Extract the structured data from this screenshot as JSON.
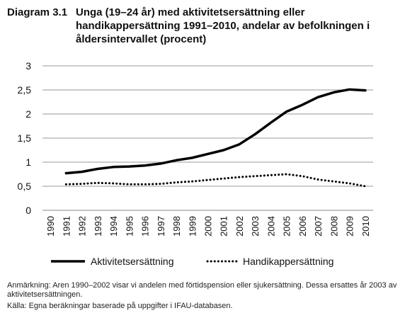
{
  "header": {
    "label": "Diagram 3.1",
    "title": "Unga (19–24 år) med aktivitetsersättning eller handikappersättning 1991–2010, andelar av befolkningen i åldersintervallet (procent)"
  },
  "notes": {
    "remark": "Anmärkning: Aren 1990–2002 visar vi andelen med förtidspension eller sjukersättning. Dessa ersattes år 2003 av aktivitetsersättningen.",
    "source": "Källa: Egna beräkningar baserade på uppgifter i IFAU-databasen."
  },
  "chart_data": {
    "type": "line",
    "x": [
      "1990",
      "1991",
      "1992",
      "1993",
      "1994",
      "1995",
      "1996",
      "1997",
      "1998",
      "1999",
      "2000",
      "2001",
      "2002",
      "2003",
      "2004",
      "2005",
      "2006",
      "2007",
      "2008",
      "2009",
      "2010"
    ],
    "y_tick_labels": [
      "0",
      "0,5",
      "1",
      "1,5",
      "2",
      "2,5",
      "3"
    ],
    "y_tick_values": [
      0,
      0.5,
      1,
      1.5,
      2,
      2.5,
      3
    ],
    "ylim": [
      0,
      3
    ],
    "grid": true,
    "legend_position": "bottom",
    "series": [
      {
        "name": "Aktivitetsersättning",
        "style": "solid",
        "color": "#000000",
        "values": [
          null,
          0.77,
          0.8,
          0.86,
          0.9,
          0.91,
          0.93,
          0.97,
          1.04,
          1.09,
          1.17,
          1.25,
          1.37,
          1.58,
          1.82,
          2.05,
          2.19,
          2.35,
          2.45,
          2.51,
          2.49
        ]
      },
      {
        "name": "Handikappersättning",
        "style": "dotted",
        "color": "#000000",
        "values": [
          null,
          0.54,
          0.55,
          0.57,
          0.56,
          0.54,
          0.54,
          0.55,
          0.58,
          0.6,
          0.63,
          0.66,
          0.69,
          0.71,
          0.73,
          0.75,
          0.71,
          0.64,
          0.6,
          0.56,
          0.5
        ]
      }
    ]
  }
}
